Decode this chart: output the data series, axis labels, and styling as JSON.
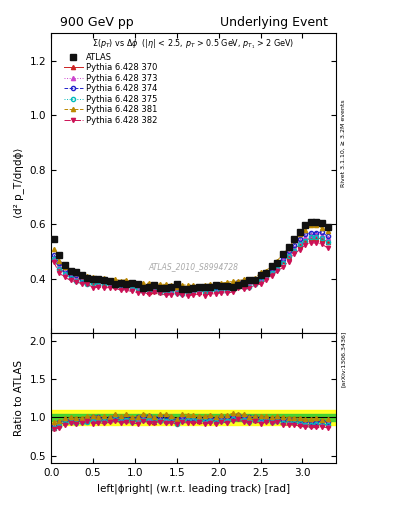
{
  "title_left": "900 GeV pp",
  "title_right": "Underlying Event",
  "watermark": "ATLAS_2010_S8994728",
  "ylabel_main": "⟨d² p_T/dηdϕ⟩",
  "ylabel_ratio": "Ratio to ATLAS",
  "xlabel": "left|ϕright| (w.r.t. leading track) [rad]",
  "xlim": [
    0,
    3.4
  ],
  "ylim_main": [
    0.2,
    1.3
  ],
  "ylim_ratio": [
    0.4,
    2.1
  ],
  "yticks_main": [
    0.4,
    0.6,
    0.8,
    1.0,
    1.2
  ],
  "yticks_ratio": [
    0.5,
    1.0,
    1.5,
    2.0
  ],
  "rivet_label": "Rivet 3.1.10, ≥ 3.2M events",
  "arxiv_label": "[arXiv:1306.3436]",
  "series": [
    {
      "label": "ATLAS",
      "color": "#111111",
      "marker": "s",
      "markersize": 4,
      "linestyle": "none",
      "mfc": "#111111"
    },
    {
      "label": "Pythia 6.428 370",
      "color": "#cc2222",
      "marker": "^",
      "markersize": 3,
      "linestyle": "-",
      "mfc": "#cc2222"
    },
    {
      "label": "Pythia 6.428 373",
      "color": "#cc44cc",
      "marker": "^",
      "markersize": 3,
      "linestyle": ":",
      "mfc": "#cc44cc"
    },
    {
      "label": "Pythia 6.428 374",
      "color": "#2222cc",
      "marker": "o",
      "markersize": 3,
      "linestyle": "--",
      "mfc": "none"
    },
    {
      "label": "Pythia 6.428 375",
      "color": "#00bbbb",
      "marker": "o",
      "markersize": 3,
      "linestyle": ":",
      "mfc": "none"
    },
    {
      "label": "Pythia 6.428 381",
      "color": "#bb8800",
      "marker": "^",
      "markersize": 3,
      "linestyle": "--",
      "mfc": "#bb8800"
    },
    {
      "label": "Pythia 6.428 382",
      "color": "#cc1155",
      "marker": "v",
      "markersize": 3,
      "linestyle": "-.",
      "mfc": "#cc1155"
    }
  ],
  "band_yellow": 0.1,
  "band_green": 0.05
}
